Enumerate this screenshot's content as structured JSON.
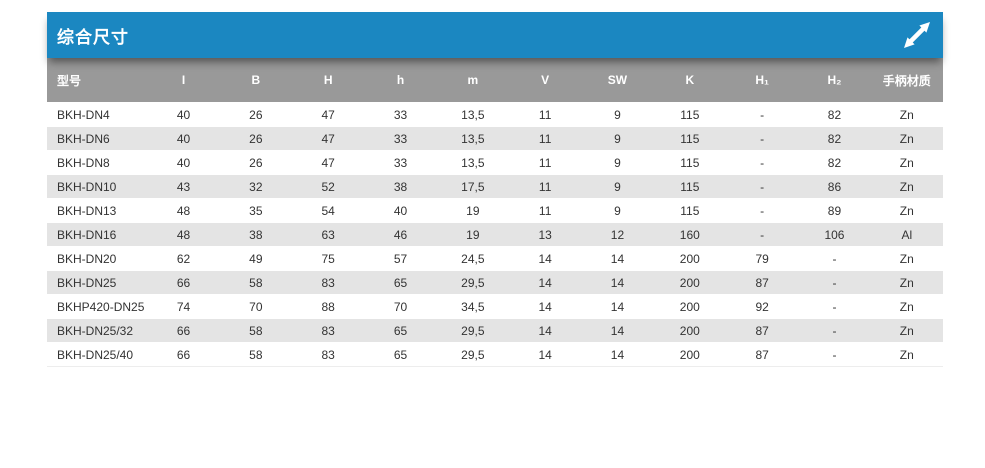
{
  "panel": {
    "title": "综合尺寸",
    "accent_color": "#1b87c1",
    "header_bg": "#999999",
    "alt_row_bg": "#e4e4e4",
    "expand_icon": "diagonal-resize-arrow"
  },
  "table": {
    "columns": [
      "型号",
      "I",
      "B",
      "H",
      "h",
      "m",
      "V",
      "SW",
      "K",
      "H₁",
      "H₂",
      "手柄材质"
    ],
    "rows": [
      [
        "BKH-DN4",
        "40",
        "26",
        "47",
        "33",
        "13,5",
        "11",
        "9",
        "115",
        "-",
        "82",
        "Zn"
      ],
      [
        "BKH-DN6",
        "40",
        "26",
        "47",
        "33",
        "13,5",
        "11",
        "9",
        "115",
        "-",
        "82",
        "Zn"
      ],
      [
        "BKH-DN8",
        "40",
        "26",
        "47",
        "33",
        "13,5",
        "11",
        "9",
        "115",
        "-",
        "82",
        "Zn"
      ],
      [
        "BKH-DN10",
        "43",
        "32",
        "52",
        "38",
        "17,5",
        "11",
        "9",
        "115",
        "-",
        "86",
        "Zn"
      ],
      [
        "BKH-DN13",
        "48",
        "35",
        "54",
        "40",
        "19",
        "11",
        "9",
        "115",
        "-",
        "89",
        "Zn"
      ],
      [
        "BKH-DN16",
        "48",
        "38",
        "63",
        "46",
        "19",
        "13",
        "12",
        "160",
        "-",
        "106",
        "Al"
      ],
      [
        "BKH-DN20",
        "62",
        "49",
        "75",
        "57",
        "24,5",
        "14",
        "14",
        "200",
        "79",
        "-",
        "Zn"
      ],
      [
        "BKH-DN25",
        "66",
        "58",
        "83",
        "65",
        "29,5",
        "14",
        "14",
        "200",
        "87",
        "-",
        "Zn"
      ],
      [
        "BKHP420-DN25",
        "74",
        "70",
        "88",
        "70",
        "34,5",
        "14",
        "14",
        "200",
        "92",
        "-",
        "Zn"
      ],
      [
        "BKH-DN25/32",
        "66",
        "58",
        "83",
        "65",
        "29,5",
        "14",
        "14",
        "200",
        "87",
        "-",
        "Zn"
      ],
      [
        "BKH-DN25/40",
        "66",
        "58",
        "83",
        "65",
        "29,5",
        "14",
        "14",
        "200",
        "87",
        "-",
        "Zn"
      ]
    ]
  }
}
